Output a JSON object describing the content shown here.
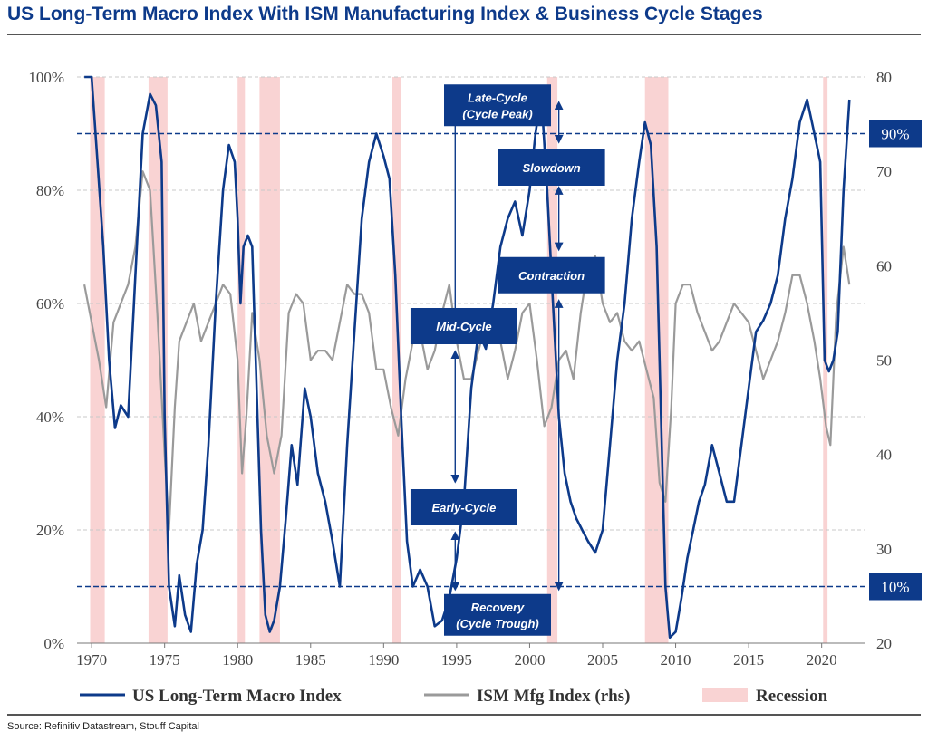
{
  "title": "US Long-Term Macro Index With ISM Manufacturing Index & Business Cycle Stages",
  "source": "Source: Refinitiv Datastream, Stouff Capital",
  "colors": {
    "macro": "#0d3a8a",
    "ism": "#9a9a9a",
    "recession": "#f9d3d3",
    "stage_box": "#0d3a8a",
    "threshold": "#0d3a8a"
  },
  "chart_data": {
    "type": "line",
    "title": "US Long-Term Macro Index With ISM Manufacturing Index & Business Cycle Stages",
    "xlim": [
      1969,
      2023
    ],
    "x_ticks": [
      "1970",
      "1975",
      "1980",
      "1985",
      "1990",
      "1995",
      "2000",
      "2005",
      "2010",
      "2015",
      "2020"
    ],
    "y_left": {
      "lim": [
        0,
        100
      ],
      "ticks": [
        "0%",
        "20%",
        "40%",
        "60%",
        "80%",
        "100%"
      ]
    },
    "y_right": {
      "lim": [
        20,
        80
      ],
      "ticks": [
        "20",
        "30",
        "40",
        "50",
        "60",
        "70",
        "80"
      ]
    },
    "grid": "horizontal dashed",
    "legend_position": "bottom",
    "thresholds": [
      {
        "value": 90,
        "label": "90%"
      },
      {
        "value": 10,
        "label": "10%"
      }
    ],
    "recessions": [
      [
        1969.9,
        1970.9
      ],
      [
        1973.9,
        1975.2
      ],
      [
        1980.0,
        1980.5
      ],
      [
        1981.5,
        1982.9
      ],
      [
        1990.6,
        1991.2
      ],
      [
        2001.2,
        2001.9
      ],
      [
        2007.9,
        2009.5
      ],
      [
        2020.1,
        2020.4
      ]
    ],
    "stage_labels": [
      {
        "text_line1": "Late-Cycle",
        "text_line2": "(Cycle Peak)",
        "x": 1997.8,
        "y": 95
      },
      {
        "text_line1": "Slowdown",
        "text_line2": "",
        "x": 2001.5,
        "y": 84
      },
      {
        "text_line1": "Contraction",
        "text_line2": "",
        "x": 2001.5,
        "y": 65
      },
      {
        "text_line1": "Mid-Cycle",
        "text_line2": "",
        "x": 1995.5,
        "y": 56
      },
      {
        "text_line1": "Early-Cycle",
        "text_line2": "",
        "x": 1995.5,
        "y": 24
      },
      {
        "text_line1": "Recovery",
        "text_line2": "(Cycle Trough)",
        "x": 1997.8,
        "y": 5
      }
    ],
    "stage_arrows": [
      {
        "x": 1994.9,
        "y1": 95,
        "y2": 58
      },
      {
        "x": 1994.9,
        "y1": 51,
        "y2": 29
      },
      {
        "x": 1994.9,
        "y1": 19,
        "y2": 10
      },
      {
        "x": 2002.0,
        "y1": 95,
        "y2": 89
      },
      {
        "x": 2002.0,
        "y1": 80,
        "y2": 70
      },
      {
        "x": 2002.0,
        "y1": 60,
        "y2": 10
      }
    ],
    "series": [
      {
        "name": "US Long-Term Macro Index",
        "axis": "left",
        "x": [
          1969.5,
          1970.0,
          1970.4,
          1970.8,
          1971.2,
          1971.6,
          1972.0,
          1972.5,
          1973.0,
          1973.5,
          1974.0,
          1974.4,
          1974.8,
          1975.0,
          1975.3,
          1975.7,
          1976.0,
          1976.4,
          1976.8,
          1977.2,
          1977.6,
          1978.0,
          1978.5,
          1979.0,
          1979.4,
          1979.8,
          1980.0,
          1980.2,
          1980.4,
          1980.7,
          1981.0,
          1981.3,
          1981.6,
          1981.9,
          1982.2,
          1982.5,
          1982.9,
          1983.3,
          1983.7,
          1984.1,
          1984.6,
          1985.0,
          1985.5,
          1986.0,
          1986.5,
          1987.0,
          1987.5,
          1988.0,
          1988.5,
          1989.0,
          1989.5,
          1990.0,
          1990.4,
          1990.8,
          1991.2,
          1991.6,
          1992.0,
          1992.5,
          1993.0,
          1993.5,
          1994.0,
          1994.5,
          1995.0,
          1995.5,
          1996.0,
          1996.5,
          1997.0,
          1997.5,
          1998.0,
          1998.5,
          1999.0,
          1999.5,
          2000.0,
          2000.4,
          2000.8,
          2001.2,
          2001.6,
          2002.0,
          2002.4,
          2002.8,
          2003.2,
          2003.6,
          2004.0,
          2004.5,
          2005.0,
          2005.5,
          2006.0,
          2006.5,
          2007.0,
          2007.5,
          2007.9,
          2008.3,
          2008.7,
          2009.0,
          2009.3,
          2009.6,
          2010.0,
          2010.4,
          2010.8,
          2011.2,
          2011.6,
          2012.0,
          2012.5,
          2013.0,
          2013.5,
          2014.0,
          2014.5,
          2015.0,
          2015.5,
          2016.0,
          2016.5,
          2017.0,
          2017.5,
          2018.0,
          2018.5,
          2019.0,
          2019.5,
          2019.9,
          2020.2,
          2020.5,
          2020.8,
          2021.1,
          2021.5,
          2021.9
        ],
        "y": [
          100,
          100,
          85,
          70,
          50,
          38,
          42,
          40,
          65,
          90,
          97,
          95,
          85,
          40,
          10,
          3,
          12,
          5,
          2,
          14,
          20,
          35,
          60,
          80,
          88,
          85,
          75,
          60,
          70,
          72,
          70,
          45,
          20,
          5,
          2,
          4,
          10,
          22,
          35,
          28,
          45,
          40,
          30,
          25,
          18,
          10,
          35,
          55,
          75,
          85,
          90,
          86,
          82,
          65,
          40,
          18,
          10,
          13,
          10,
          3,
          4,
          8,
          15,
          25,
          45,
          55,
          52,
          60,
          70,
          75,
          78,
          72,
          80,
          90,
          97,
          80,
          60,
          40,
          30,
          25,
          22,
          20,
          18,
          16,
          20,
          35,
          50,
          60,
          75,
          85,
          92,
          88,
          70,
          40,
          10,
          1,
          2,
          8,
          15,
          20,
          25,
          28,
          35,
          30,
          25,
          25,
          35,
          45,
          55,
          57,
          60,
          65,
          75,
          82,
          92,
          96,
          90,
          85,
          50,
          48,
          50,
          55,
          80,
          96
        ]
      },
      {
        "name": "ISM Mfg Index (rhs)",
        "axis": "right",
        "x": [
          1969.5,
          1970.0,
          1970.5,
          1971.0,
          1971.5,
          1972.0,
          1972.5,
          1973.0,
          1973.5,
          1974.0,
          1974.5,
          1975.0,
          1975.3,
          1975.7,
          1976.0,
          1976.5,
          1977.0,
          1977.5,
          1978.0,
          1978.5,
          1979.0,
          1979.5,
          1980.0,
          1980.3,
          1980.6,
          1981.0,
          1981.5,
          1982.0,
          1982.5,
          1983.0,
          1983.5,
          1984.0,
          1984.5,
          1985.0,
          1985.5,
          1986.0,
          1986.5,
          1987.0,
          1987.5,
          1988.0,
          1988.5,
          1989.0,
          1989.5,
          1990.0,
          1990.5,
          1991.0,
          1991.5,
          1992.0,
          1992.5,
          1993.0,
          1993.5,
          1994.0,
          1994.5,
          1995.0,
          1995.5,
          1996.0,
          1996.5,
          1997.0,
          1997.5,
          1998.0,
          1998.5,
          1999.0,
          1999.5,
          2000.0,
          2000.5,
          2001.0,
          2001.5,
          2002.0,
          2002.5,
          2003.0,
          2003.5,
          2004.0,
          2004.5,
          2005.0,
          2005.5,
          2006.0,
          2006.5,
          2007.0,
          2007.5,
          2008.0,
          2008.5,
          2008.9,
          2009.3,
          2009.7,
          2010.0,
          2010.5,
          2011.0,
          2011.5,
          2012.0,
          2012.5,
          2013.0,
          2013.5,
          2014.0,
          2014.5,
          2015.0,
          2015.5,
          2016.0,
          2016.5,
          2017.0,
          2017.5,
          2018.0,
          2018.5,
          2019.0,
          2019.5,
          2019.9,
          2020.3,
          2020.6,
          2021.0,
          2021.5,
          2021.9
        ],
        "y": [
          58,
          54,
          50,
          45,
          54,
          56,
          58,
          62,
          70,
          68,
          55,
          40,
          32,
          45,
          52,
          54,
          56,
          52,
          54,
          56,
          58,
          57,
          50,
          38,
          44,
          55,
          50,
          42,
          38,
          42,
          55,
          57,
          56,
          50,
          51,
          51,
          50,
          54,
          58,
          57,
          57,
          55,
          49,
          49,
          45,
          42,
          48,
          52,
          53,
          49,
          51,
          55,
          58,
          52,
          48,
          48,
          51,
          54,
          55,
          52,
          48,
          51,
          55,
          56,
          50,
          43,
          45,
          50,
          51,
          48,
          55,
          60,
          61,
          56,
          54,
          55,
          52,
          51,
          52,
          49,
          46,
          37,
          35,
          45,
          56,
          58,
          58,
          55,
          53,
          51,
          52,
          54,
          56,
          55,
          54,
          51,
          48,
          50,
          52,
          55,
          59,
          59,
          56,
          52,
          48,
          43,
          41,
          55,
          62,
          58
        ]
      }
    ]
  },
  "legend": {
    "macro_label": "US Long-Term Macro Index",
    "ism_label": "ISM Mfg Index (rhs)",
    "recession_label": "Recession"
  }
}
